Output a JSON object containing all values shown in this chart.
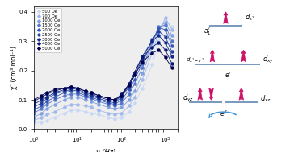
{
  "xlabel": "ν (Hz)",
  "ylabel": "χ″ (cm³ mol⁻¹)",
  "colors_list": [
    "#c8d8f5",
    "#a0b8ec",
    "#80a0e0",
    "#5878cc",
    "#3858b8",
    "#2040a0",
    "#102888",
    "#081870",
    "#000050"
  ],
  "labels": [
    "500 Oe",
    "700 Oe",
    "1000 Oe",
    "1500 Oe",
    "2000 Oe",
    "2500 Oe",
    "3000 Oe",
    "4000 Oe",
    "5000 Oe"
  ],
  "series_freq": [
    [
      1,
      1.5,
      2,
      3,
      5,
      7,
      10,
      15,
      20,
      30,
      50,
      70,
      100,
      150,
      200,
      300,
      500,
      700,
      1000,
      1400
    ],
    [
      1,
      1.5,
      2,
      3,
      5,
      7,
      10,
      15,
      20,
      30,
      50,
      70,
      100,
      150,
      200,
      300,
      500,
      700,
      1000,
      1400
    ],
    [
      1,
      1.5,
      2,
      3,
      5,
      7,
      10,
      15,
      20,
      30,
      50,
      70,
      100,
      150,
      200,
      300,
      500,
      700,
      1000,
      1400
    ],
    [
      1,
      1.5,
      2,
      3,
      5,
      7,
      10,
      15,
      20,
      30,
      50,
      70,
      100,
      150,
      200,
      300,
      500,
      700,
      1000,
      1400
    ],
    [
      1,
      1.5,
      2,
      3,
      5,
      7,
      10,
      15,
      20,
      30,
      50,
      70,
      100,
      150,
      200,
      300,
      500,
      700,
      1000,
      1400
    ],
    [
      1,
      1.5,
      2,
      3,
      5,
      7,
      10,
      15,
      20,
      30,
      50,
      70,
      100,
      150,
      200,
      300,
      500,
      700,
      1000,
      1400
    ],
    [
      1,
      1.5,
      2,
      3,
      5,
      7,
      10,
      15,
      20,
      30,
      50,
      70,
      100,
      150,
      200,
      300,
      500,
      700,
      1000,
      1400
    ],
    [
      1,
      1.5,
      2,
      3,
      5,
      7,
      10,
      15,
      20,
      30,
      50,
      70,
      100,
      150,
      200,
      300,
      500,
      700,
      1000,
      1400
    ],
    [
      1,
      1.5,
      2,
      3,
      5,
      7,
      10,
      15,
      20,
      30,
      50,
      70,
      100,
      150,
      200,
      300,
      500,
      700,
      1000,
      1400
    ]
  ],
  "series_chi": [
    [
      0.02,
      0.025,
      0.03,
      0.04,
      0.055,
      0.065,
      0.065,
      0.06,
      0.055,
      0.05,
      0.04,
      0.035,
      0.04,
      0.06,
      0.09,
      0.14,
      0.22,
      0.3,
      0.37,
      0.35
    ],
    [
      0.03,
      0.04,
      0.05,
      0.06,
      0.075,
      0.085,
      0.085,
      0.08,
      0.075,
      0.065,
      0.055,
      0.05,
      0.055,
      0.08,
      0.11,
      0.17,
      0.26,
      0.33,
      0.38,
      0.34
    ],
    [
      0.04,
      0.055,
      0.07,
      0.085,
      0.1,
      0.11,
      0.11,
      0.1,
      0.095,
      0.085,
      0.075,
      0.07,
      0.075,
      0.1,
      0.13,
      0.19,
      0.28,
      0.345,
      0.365,
      0.32
    ],
    [
      0.055,
      0.07,
      0.085,
      0.1,
      0.115,
      0.12,
      0.12,
      0.11,
      0.105,
      0.095,
      0.085,
      0.08,
      0.09,
      0.12,
      0.155,
      0.21,
      0.295,
      0.35,
      0.355,
      0.3
    ],
    [
      0.065,
      0.08,
      0.095,
      0.11,
      0.125,
      0.13,
      0.125,
      0.115,
      0.11,
      0.1,
      0.09,
      0.085,
      0.1,
      0.135,
      0.17,
      0.225,
      0.3,
      0.345,
      0.34,
      0.285
    ],
    [
      0.075,
      0.09,
      0.105,
      0.12,
      0.13,
      0.135,
      0.13,
      0.12,
      0.115,
      0.105,
      0.095,
      0.09,
      0.11,
      0.145,
      0.185,
      0.24,
      0.305,
      0.335,
      0.315,
      0.265
    ],
    [
      0.085,
      0.1,
      0.11,
      0.125,
      0.135,
      0.14,
      0.135,
      0.125,
      0.12,
      0.11,
      0.1,
      0.095,
      0.115,
      0.155,
      0.195,
      0.25,
      0.3,
      0.32,
      0.295,
      0.25
    ],
    [
      0.095,
      0.11,
      0.12,
      0.13,
      0.14,
      0.145,
      0.14,
      0.13,
      0.125,
      0.115,
      0.105,
      0.1,
      0.12,
      0.155,
      0.195,
      0.245,
      0.28,
      0.295,
      0.27,
      0.225
    ],
    [
      0.1,
      0.115,
      0.125,
      0.135,
      0.14,
      0.145,
      0.14,
      0.13,
      0.125,
      0.115,
      0.105,
      0.1,
      0.115,
      0.15,
      0.185,
      0.23,
      0.26,
      0.27,
      0.245,
      0.21
    ]
  ],
  "line_color": "#7799bb",
  "arrow_color": "#cc1166",
  "arc_color": "#4499dd"
}
